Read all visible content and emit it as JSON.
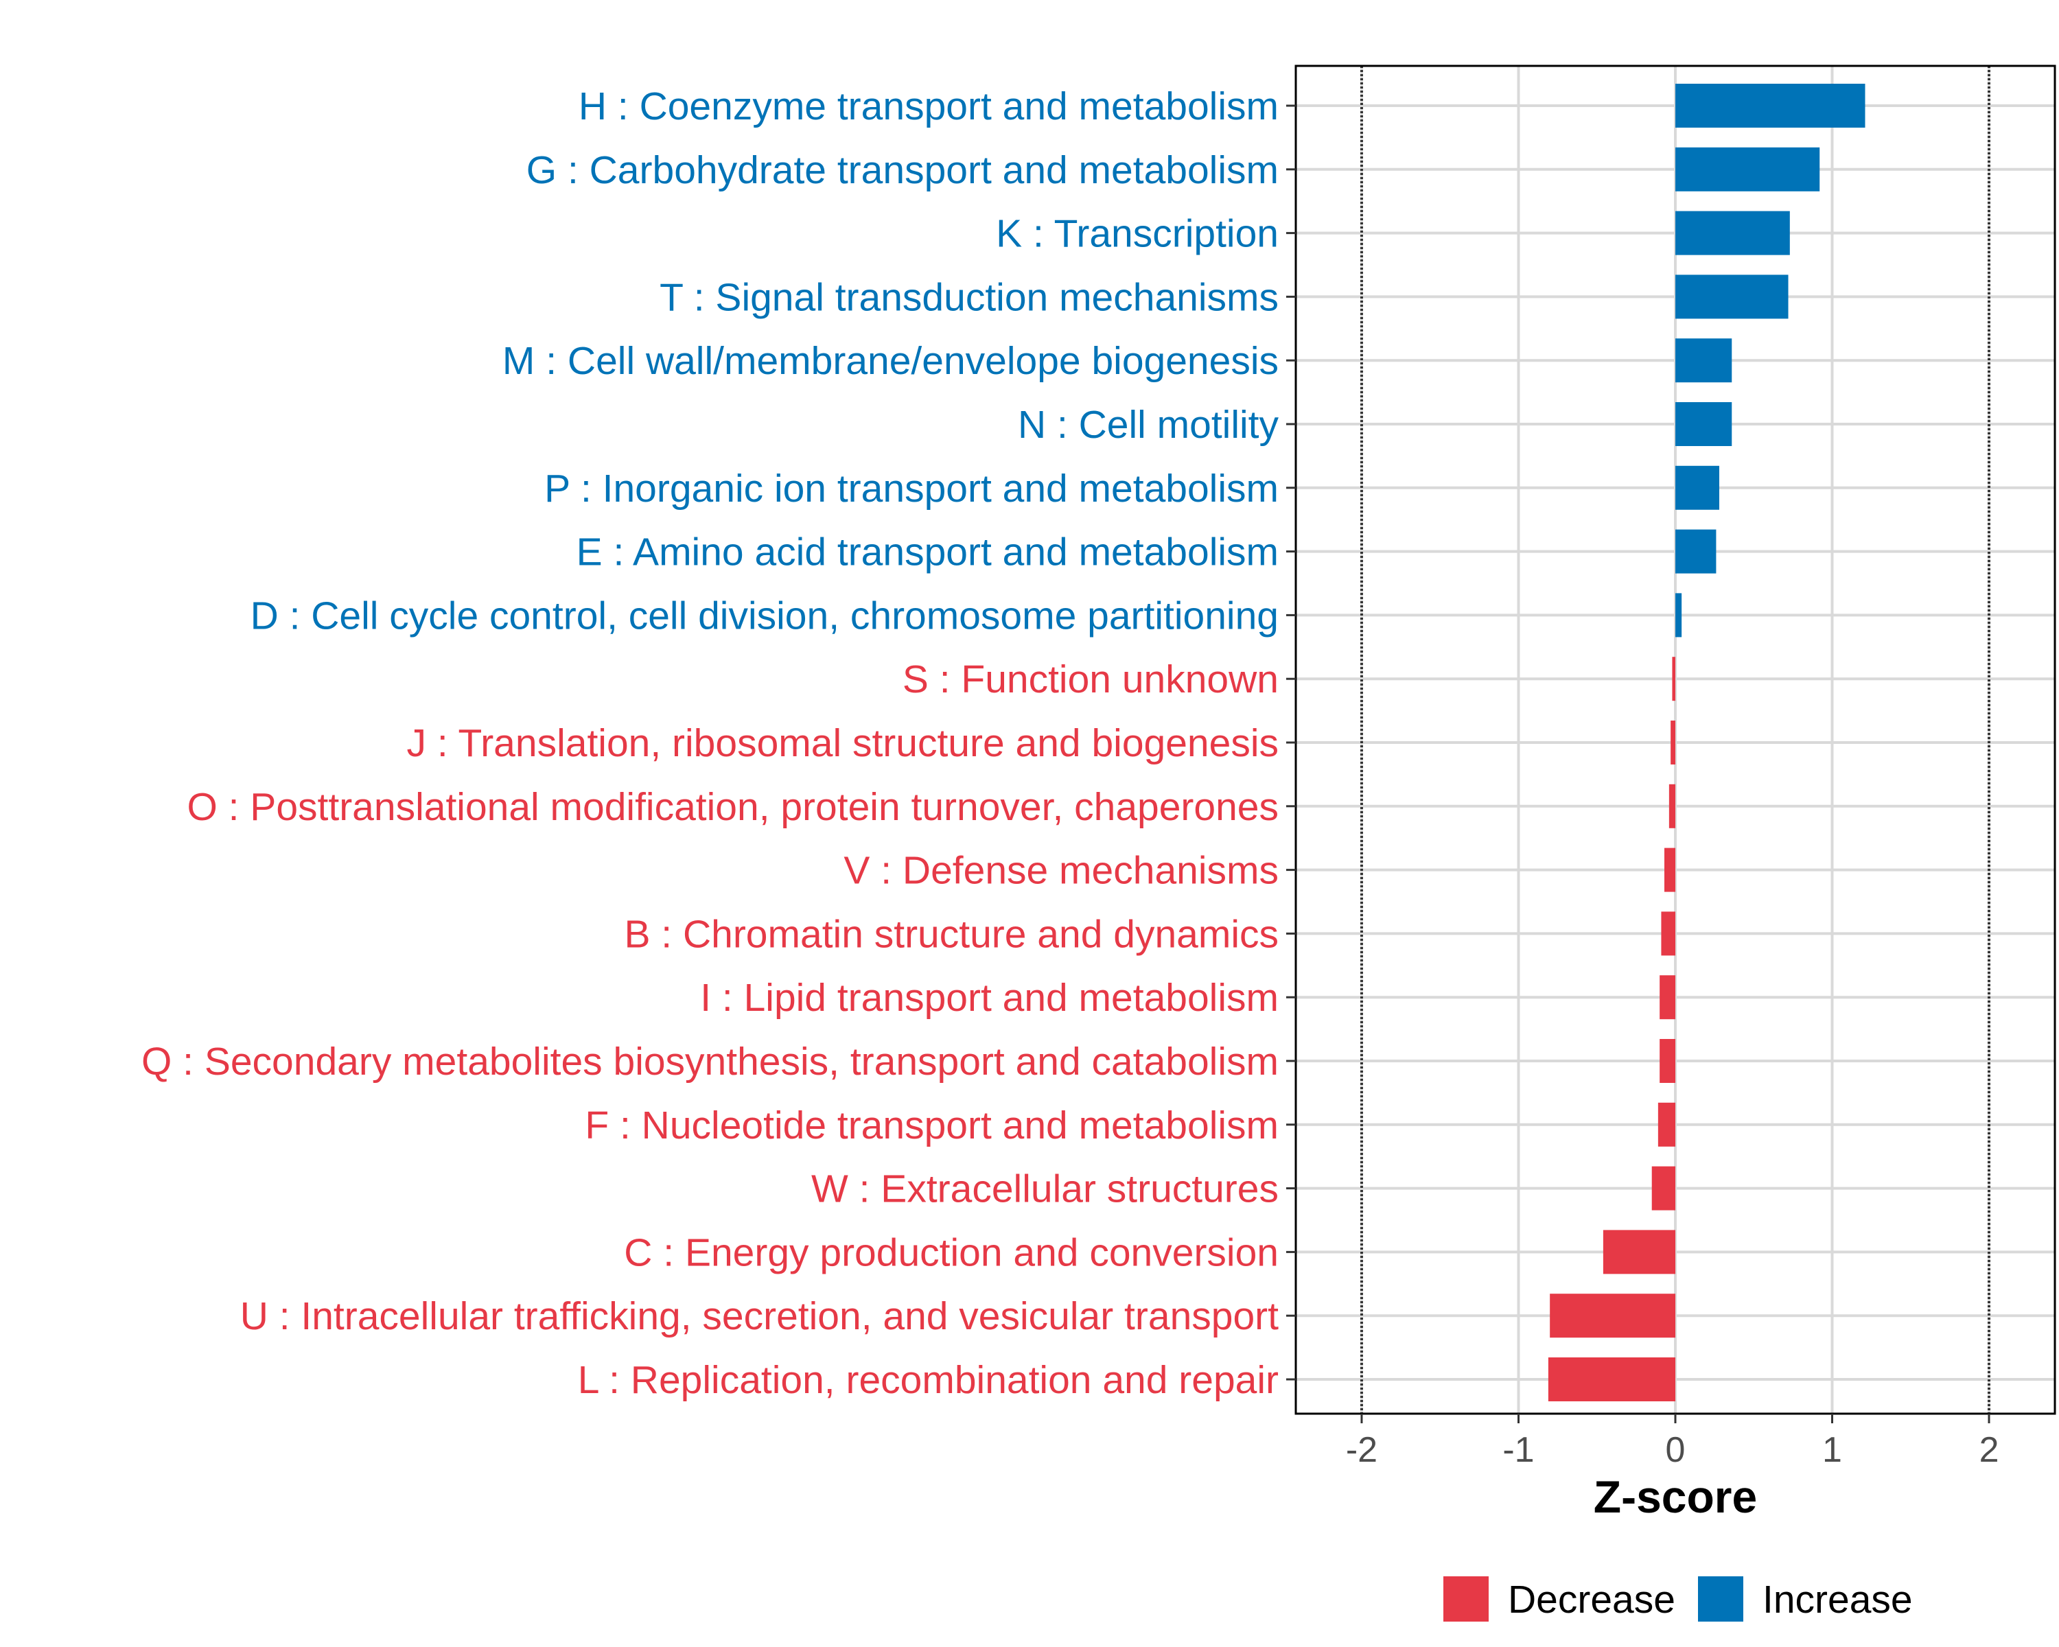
{
  "chart_data": {
    "type": "bar",
    "orientation": "horizontal",
    "title": "",
    "xlabel": "Z-score",
    "ylabel": "",
    "xlim": [
      -2.42,
      2.42
    ],
    "xticks": [
      -2,
      -1,
      0,
      1,
      2
    ],
    "xtick_labels": [
      "-2",
      "-1",
      "0",
      "1",
      "2"
    ],
    "reference_lines": [
      -2,
      2
    ],
    "grid": true,
    "legend_position": "bottom",
    "colors": {
      "Decrease": "#e63946",
      "Increase": "#0073b7"
    },
    "legend": [
      {
        "label": "Decrease",
        "color": "#e63946"
      },
      {
        "label": "Increase",
        "color": "#0073b7"
      }
    ],
    "categories": [
      "H : Coenzyme transport and metabolism",
      "G : Carbohydrate transport and metabolism",
      "K : Transcription",
      "T : Signal transduction mechanisms",
      "M : Cell wall/membrane/envelope biogenesis",
      "N : Cell motility",
      "P : Inorganic ion transport and metabolism",
      "E : Amino acid transport and metabolism",
      "D : Cell cycle control, cell division, chromosome partitioning",
      "S : Function unknown",
      "J : Translation, ribosomal structure and biogenesis",
      "O : Posttranslational modification, protein turnover, chaperones",
      "V : Defense mechanisms",
      "B : Chromatin structure and dynamics",
      "I : Lipid transport and metabolism",
      "Q : Secondary metabolites biosynthesis, transport and catabolism",
      "F : Nucleotide transport and metabolism",
      "W : Extracellular structures",
      "C : Energy production and conversion",
      "U : Intracellular trafficking, secretion, and vesicular transport",
      "L : Replication, recombination and repair"
    ],
    "values": [
      1.21,
      0.92,
      0.73,
      0.72,
      0.36,
      0.36,
      0.28,
      0.26,
      0.04,
      -0.02,
      -0.03,
      -0.04,
      -0.07,
      -0.09,
      -0.1,
      -0.1,
      -0.11,
      -0.15,
      -0.46,
      -0.8,
      -0.81
    ],
    "groups": [
      "Increase",
      "Increase",
      "Increase",
      "Increase",
      "Increase",
      "Increase",
      "Increase",
      "Increase",
      "Increase",
      "Decrease",
      "Decrease",
      "Decrease",
      "Decrease",
      "Decrease",
      "Decrease",
      "Decrease",
      "Decrease",
      "Decrease",
      "Decrease",
      "Decrease",
      "Decrease"
    ]
  }
}
